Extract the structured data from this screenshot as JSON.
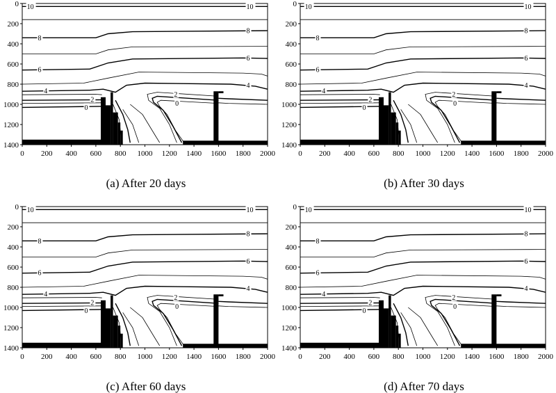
{
  "panels": [
    {
      "id": "a",
      "caption": "(a) After 20 days",
      "contour_labels": [
        {
          "text": "10",
          "left": true,
          "right": true
        },
        {
          "text": "8",
          "left": true,
          "right": true
        },
        {
          "text": "6",
          "left": true,
          "right": true
        },
        {
          "text": "4",
          "left": true,
          "right": true
        },
        {
          "text": "2",
          "left": true,
          "mid": true
        },
        {
          "text": "0",
          "left": true,
          "mid": true
        }
      ]
    },
    {
      "id": "b",
      "caption": "(b) After 30 days",
      "contour_labels": [
        {
          "text": "10",
          "left": true,
          "right": true
        },
        {
          "text": "8",
          "left": true,
          "right": true
        },
        {
          "text": "6",
          "left": true,
          "right": true
        },
        {
          "text": "4",
          "left": true,
          "right": true
        },
        {
          "text": "2",
          "left": true,
          "mid": true
        },
        {
          "text": "0",
          "left": true,
          "mid": true
        }
      ]
    },
    {
      "id": "c",
      "caption": "(c) After 60 days",
      "contour_labels": [
        {
          "text": "10",
          "left": true,
          "right": true
        },
        {
          "text": "8",
          "left": true,
          "right": true
        },
        {
          "text": "6",
          "left": true,
          "right": true
        },
        {
          "text": "4",
          "left": true,
          "right": true
        },
        {
          "text": "2",
          "left": true,
          "mid": true
        },
        {
          "text": "0",
          "left": true,
          "mid": true
        }
      ]
    },
    {
      "id": "d",
      "caption": "(d) After 70 days",
      "contour_labels": [
        {
          "text": "10",
          "left": true,
          "right": true
        },
        {
          "text": "8",
          "left": true,
          "right": true
        },
        {
          "text": "6",
          "left": true,
          "right": true
        },
        {
          "text": "4",
          "left": true,
          "right": true
        },
        {
          "text": "2",
          "left": true,
          "mid": true
        },
        {
          "text": "0",
          "left": true,
          "mid": true
        }
      ]
    }
  ],
  "x_axis": {
    "min": 0,
    "max": 2000,
    "ticks": [
      0,
      200,
      400,
      600,
      800,
      1000,
      1200,
      1400,
      1600,
      1800,
      2000
    ]
  },
  "y_axis": {
    "min": 0,
    "max": 1400,
    "inverted": true,
    "ticks": [
      0,
      200,
      400,
      600,
      800,
      1000,
      1200,
      1400
    ]
  },
  "colors": {
    "line": "#000000",
    "fill": "#000000",
    "background": "#ffffff"
  }
}
